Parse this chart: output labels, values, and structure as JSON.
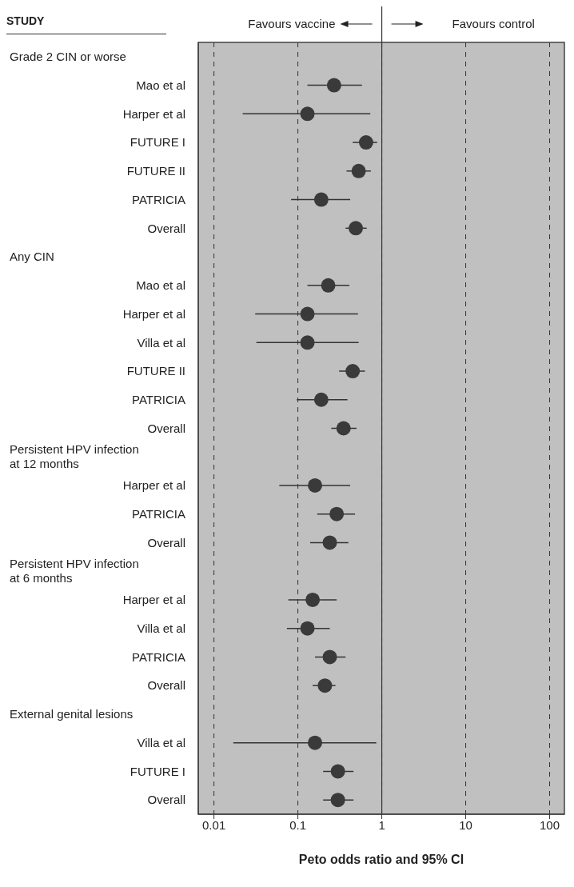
{
  "chart_data": {
    "type": "scatter",
    "orientation": "horizontal",
    "xlabel": "Peto odds ratio and 95% CI",
    "annotations": [
      "STUDY",
      "Favours vaccine",
      "Favours control",
      "Grade 2 CIN or worse",
      "Any CIN",
      "Persistent HPV infection at 12 months",
      "Persistent HPV infection at 6 months",
      "External genital lesions"
    ],
    "categories": [
      null,
      "Mao et al",
      "Harper et al",
      "FUTURE I",
      "FUTURE II",
      "PATRICIA",
      "Overall",
      null,
      "Mao et al",
      "Harper et al",
      "Villa et al",
      "FUTURE II",
      "PATRICIA",
      "Overall",
      null,
      "Harper et al",
      "PATRICIA",
      "Overall",
      null,
      "Harper et al",
      "Villa et al",
      "PATRICIA",
      "Overall",
      null,
      "Villa et al",
      "FUTURE I",
      "Overall"
    ],
    "values": [
      null,
      0.27,
      0.13,
      0.65,
      0.53,
      0.19,
      0.49,
      null,
      0.23,
      0.13,
      0.13,
      0.45,
      0.19,
      0.35,
      null,
      0.16,
      0.29,
      0.24,
      null,
      0.15,
      0.13,
      0.24,
      0.21,
      null,
      0.16,
      0.3,
      0.3
    ],
    "errors": [
      null,
      [
        0.13,
        0.58
      ],
      [
        0.022,
        0.73
      ],
      [
        0.45,
        0.88
      ],
      [
        0.38,
        0.74
      ],
      [
        0.083,
        0.42
      ],
      [
        0.37,
        0.66
      ],
      null,
      [
        0.13,
        0.41
      ],
      [
        0.031,
        0.52
      ],
      [
        0.032,
        0.53
      ],
      [
        0.31,
        0.63
      ],
      [
        0.097,
        0.39
      ],
      [
        0.25,
        0.5
      ],
      null,
      [
        0.06,
        0.42
      ],
      [
        0.17,
        0.48
      ],
      [
        0.14,
        0.4
      ],
      null,
      [
        0.077,
        0.29
      ],
      [
        0.074,
        0.24
      ],
      [
        0.16,
        0.37
      ],
      [
        0.15,
        0.28
      ],
      null,
      [
        0.017,
        0.86
      ],
      [
        0.2,
        0.46
      ],
      [
        0.2,
        0.46
      ]
    ],
    "color": "#3a3a3a",
    "marker": "circle",
    "log": "x",
    "grid": "x",
    "xlim": [
      0.0065,
      150
    ],
    "xticks": [
      0.01,
      0.1,
      1,
      10,
      100
    ],
    "ref_lines": [
      {
        "axis": "x",
        "value": 1,
        "color": "#333333"
      }
    ]
  }
}
